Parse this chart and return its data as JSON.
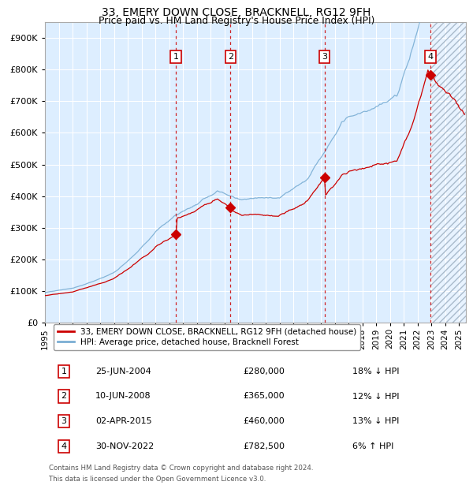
{
  "title1": "33, EMERY DOWN CLOSE, BRACKNELL, RG12 9FH",
  "title2": "Price paid vs. HM Land Registry's House Price Index (HPI)",
  "transactions": [
    {
      "num": 1,
      "date": "25-JUN-2004",
      "date_x": 2004.48,
      "price": 280000,
      "price_str": "£280,000",
      "pct": "18%",
      "dir": "↓"
    },
    {
      "num": 2,
      "date": "10-JUN-2008",
      "date_x": 2008.44,
      "price": 365000,
      "price_str": "£365,000",
      "pct": "12%",
      "dir": "↓"
    },
    {
      "num": 3,
      "date": "02-APR-2015",
      "date_x": 2015.25,
      "price": 460000,
      "price_str": "£460,000",
      "pct": "13%",
      "dir": "↓"
    },
    {
      "num": 4,
      "date": "30-NOV-2022",
      "date_x": 2022.92,
      "price": 782500,
      "price_str": "£782,500",
      "pct": "6%",
      "dir": "↑"
    }
  ],
  "legend_line1": "33, EMERY DOWN CLOSE, BRACKNELL, RG12 9FH (detached house)",
  "legend_line2": "HPI: Average price, detached house, Bracknell Forest",
  "footnote1": "Contains HM Land Registry data © Crown copyright and database right 2024.",
  "footnote2": "This data is licensed under the Open Government Licence v3.0.",
  "ylim_max": 950000,
  "ylim_min": 0,
  "xmin": 1995.0,
  "xmax": 2025.5,
  "hpi_color": "#7aaed4",
  "price_color": "#cc0000",
  "background_color": "#ddeeff",
  "hatch_color": "#aabbcc",
  "grid_color": "#ffffff",
  "yticks": [
    0,
    100000,
    200000,
    300000,
    400000,
    500000,
    600000,
    700000,
    800000,
    900000
  ],
  "ytick_labels": [
    "£0",
    "£100K",
    "£200K",
    "£300K",
    "£400K",
    "£500K",
    "£600K",
    "£700K",
    "£800K",
    "£900K"
  ]
}
